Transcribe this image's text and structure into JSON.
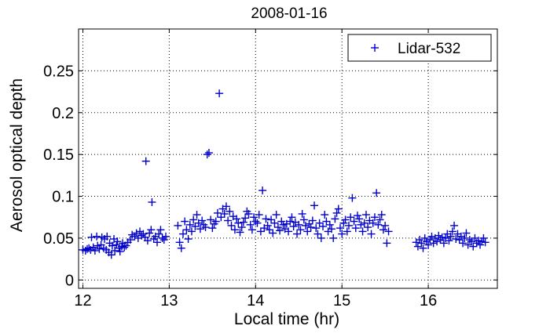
{
  "chart_data": {
    "type": "scatter",
    "title": "2008-01-16",
    "xlabel": "Local time (hr)",
    "ylabel": "Aerosol optical depth",
    "xlim": [
      11.95,
      16.8
    ],
    "ylim": [
      -0.01,
      0.3
    ],
    "xticks": [
      12,
      13,
      14,
      15,
      16
    ],
    "yticks": [
      0,
      0.05,
      0.1,
      0.15,
      0.2,
      0.25
    ],
    "ytick_labels": [
      "0",
      "0.05",
      "0.1",
      "0.15",
      "0.2",
      "0.25"
    ],
    "grid": true,
    "grid_style": "dotted",
    "legend_position": "top-right",
    "marker": "plus",
    "series_color": "#0000cc",
    "series": [
      {
        "name": "Lidar-532",
        "points": [
          [
            12.0,
            0.036
          ],
          [
            12.03,
            0.035
          ],
          [
            12.05,
            0.037
          ],
          [
            12.07,
            0.038
          ],
          [
            12.09,
            0.036
          ],
          [
            12.1,
            0.051
          ],
          [
            12.12,
            0.039
          ],
          [
            12.14,
            0.035
          ],
          [
            12.16,
            0.052
          ],
          [
            12.17,
            0.041
          ],
          [
            12.19,
            0.037
          ],
          [
            12.21,
            0.042
          ],
          [
            12.22,
            0.051
          ],
          [
            12.24,
            0.038
          ],
          [
            12.25,
            0.049
          ],
          [
            12.27,
            0.036
          ],
          [
            12.28,
            0.052
          ],
          [
            12.3,
            0.033
          ],
          [
            12.31,
            0.044
          ],
          [
            12.33,
            0.03
          ],
          [
            12.34,
            0.041
          ],
          [
            12.36,
            0.049
          ],
          [
            12.37,
            0.035
          ],
          [
            12.39,
            0.042
          ],
          [
            12.4,
            0.046
          ],
          [
            12.42,
            0.038
          ],
          [
            12.43,
            0.034
          ],
          [
            12.45,
            0.04
          ],
          [
            12.46,
            0.044
          ],
          [
            12.48,
            0.039
          ],
          [
            12.5,
            0.041
          ],
          [
            12.52,
            0.045
          ],
          [
            12.55,
            0.048
          ],
          [
            12.57,
            0.054
          ],
          [
            12.6,
            0.052
          ],
          [
            12.62,
            0.056
          ],
          [
            12.64,
            0.05
          ],
          [
            12.66,
            0.058
          ],
          [
            12.68,
            0.053
          ],
          [
            12.7,
            0.055
          ],
          [
            12.72,
            0.051
          ],
          [
            12.73,
            0.142
          ],
          [
            12.75,
            0.047
          ],
          [
            12.77,
            0.056
          ],
          [
            12.79,
            0.06
          ],
          [
            12.8,
            0.093
          ],
          [
            12.82,
            0.049
          ],
          [
            12.84,
            0.052
          ],
          [
            12.86,
            0.045
          ],
          [
            12.88,
            0.055
          ],
          [
            12.9,
            0.06
          ],
          [
            12.92,
            0.05
          ],
          [
            12.94,
            0.048
          ],
          [
            12.96,
            0.052
          ],
          [
            13.1,
            0.065
          ],
          [
            13.12,
            0.045
          ],
          [
            13.14,
            0.038
          ],
          [
            13.16,
            0.055
          ],
          [
            13.18,
            0.07
          ],
          [
            13.2,
            0.06
          ],
          [
            13.22,
            0.049
          ],
          [
            13.24,
            0.066
          ],
          [
            13.26,
            0.058
          ],
          [
            13.28,
            0.072
          ],
          [
            13.3,
            0.064
          ],
          [
            13.32,
            0.078
          ],
          [
            13.34,
            0.068
          ],
          [
            13.36,
            0.061
          ],
          [
            13.38,
            0.071
          ],
          [
            13.4,
            0.066
          ],
          [
            13.42,
            0.063
          ],
          [
            13.44,
            0.15
          ],
          [
            13.46,
            0.152
          ],
          [
            13.48,
            0.072
          ],
          [
            13.5,
            0.062
          ],
          [
            13.52,
            0.067
          ],
          [
            13.54,
            0.07
          ],
          [
            13.56,
            0.08
          ],
          [
            13.58,
            0.223
          ],
          [
            13.6,
            0.075
          ],
          [
            13.62,
            0.085
          ],
          [
            13.64,
            0.079
          ],
          [
            13.66,
            0.088
          ],
          [
            13.68,
            0.071
          ],
          [
            13.7,
            0.082
          ],
          [
            13.72,
            0.065
          ],
          [
            13.74,
            0.076
          ],
          [
            13.76,
            0.06
          ],
          [
            13.78,
            0.073
          ],
          [
            13.8,
            0.068
          ],
          [
            13.82,
            0.057
          ],
          [
            13.84,
            0.063
          ],
          [
            13.86,
            0.069
          ],
          [
            13.88,
            0.074
          ],
          [
            13.9,
            0.082
          ],
          [
            13.92,
            0.079
          ],
          [
            13.94,
            0.066
          ],
          [
            13.96,
            0.06
          ],
          [
            13.98,
            0.075
          ],
          [
            14.0,
            0.07
          ],
          [
            14.02,
            0.068
          ],
          [
            14.04,
            0.078
          ],
          [
            14.06,
            0.058
          ],
          [
            14.08,
            0.107
          ],
          [
            14.1,
            0.062
          ],
          [
            14.12,
            0.073
          ],
          [
            14.14,
            0.065
          ],
          [
            14.16,
            0.06
          ],
          [
            14.18,
            0.072
          ],
          [
            14.2,
            0.056
          ],
          [
            14.22,
            0.068
          ],
          [
            14.24,
            0.078
          ],
          [
            14.26,
            0.063
          ],
          [
            14.28,
            0.059
          ],
          [
            14.3,
            0.07
          ],
          [
            14.32,
            0.066
          ],
          [
            14.34,
            0.061
          ],
          [
            14.36,
            0.067
          ],
          [
            14.38,
            0.058
          ],
          [
            14.4,
            0.07
          ],
          [
            14.42,
            0.075
          ],
          [
            14.44,
            0.064
          ],
          [
            14.46,
            0.069
          ],
          [
            14.48,
            0.055
          ],
          [
            14.5,
            0.066
          ],
          [
            14.52,
            0.06
          ],
          [
            14.54,
            0.079
          ],
          [
            14.56,
            0.072
          ],
          [
            14.58,
            0.065
          ],
          [
            14.6,
            0.058
          ],
          [
            14.62,
            0.067
          ],
          [
            14.64,
            0.063
          ],
          [
            14.66,
            0.071
          ],
          [
            14.68,
            0.089
          ],
          [
            14.7,
            0.062
          ],
          [
            14.72,
            0.055
          ],
          [
            14.74,
            0.068
          ],
          [
            14.76,
            0.05
          ],
          [
            14.78,
            0.064
          ],
          [
            14.8,
            0.078
          ],
          [
            14.82,
            0.07
          ],
          [
            14.84,
            0.058
          ],
          [
            14.86,
            0.066
          ],
          [
            14.88,
            0.061
          ],
          [
            14.9,
            0.05
          ],
          [
            14.92,
            0.073
          ],
          [
            14.94,
            0.08
          ],
          [
            14.96,
            0.085
          ],
          [
            14.98,
            0.062
          ],
          [
            15.0,
            0.055
          ],
          [
            15.02,
            0.068
          ],
          [
            15.04,
            0.072
          ],
          [
            15.06,
            0.058
          ],
          [
            15.08,
            0.065
          ],
          [
            15.1,
            0.075
          ],
          [
            15.12,
            0.098
          ],
          [
            15.14,
            0.07
          ],
          [
            15.16,
            0.062
          ],
          [
            15.18,
            0.077
          ],
          [
            15.2,
            0.073
          ],
          [
            15.22,
            0.066
          ],
          [
            15.24,
            0.058
          ],
          [
            15.26,
            0.068
          ],
          [
            15.28,
            0.078
          ],
          [
            15.3,
            0.063
          ],
          [
            15.32,
            0.071
          ],
          [
            15.34,
            0.055
          ],
          [
            15.36,
            0.068
          ],
          [
            15.38,
            0.075
          ],
          [
            15.4,
            0.104
          ],
          [
            15.42,
            0.066
          ],
          [
            15.44,
            0.072
          ],
          [
            15.46,
            0.078
          ],
          [
            15.48,
            0.06
          ],
          [
            15.5,
            0.065
          ],
          [
            15.52,
            0.044
          ],
          [
            15.54,
            0.058
          ],
          [
            15.86,
            0.045
          ],
          [
            15.88,
            0.04
          ],
          [
            15.9,
            0.048
          ],
          [
            15.92,
            0.044
          ],
          [
            15.94,
            0.038
          ],
          [
            15.96,
            0.05
          ],
          [
            15.98,
            0.046
          ],
          [
            16.0,
            0.042
          ],
          [
            16.02,
            0.048
          ],
          [
            16.04,
            0.052
          ],
          [
            16.06,
            0.044
          ],
          [
            16.08,
            0.05
          ],
          [
            16.1,
            0.046
          ],
          [
            16.12,
            0.053
          ],
          [
            16.14,
            0.048
          ],
          [
            16.16,
            0.051
          ],
          [
            16.18,
            0.044
          ],
          [
            16.2,
            0.05
          ],
          [
            16.22,
            0.055
          ],
          [
            16.24,
            0.047
          ],
          [
            16.26,
            0.052
          ],
          [
            16.28,
            0.058
          ],
          [
            16.3,
            0.065
          ],
          [
            16.32,
            0.049
          ],
          [
            16.34,
            0.055
          ],
          [
            16.36,
            0.048
          ],
          [
            16.38,
            0.052
          ],
          [
            16.4,
            0.044
          ],
          [
            16.42,
            0.05
          ],
          [
            16.44,
            0.056
          ],
          [
            16.46,
            0.042
          ],
          [
            16.48,
            0.048
          ],
          [
            16.5,
            0.046
          ],
          [
            16.52,
            0.04
          ],
          [
            16.54,
            0.05
          ],
          [
            16.56,
            0.044
          ],
          [
            16.58,
            0.047
          ],
          [
            16.6,
            0.042
          ],
          [
            16.62,
            0.046
          ],
          [
            16.64,
            0.05
          ],
          [
            16.66,
            0.045
          ]
        ]
      }
    ]
  }
}
